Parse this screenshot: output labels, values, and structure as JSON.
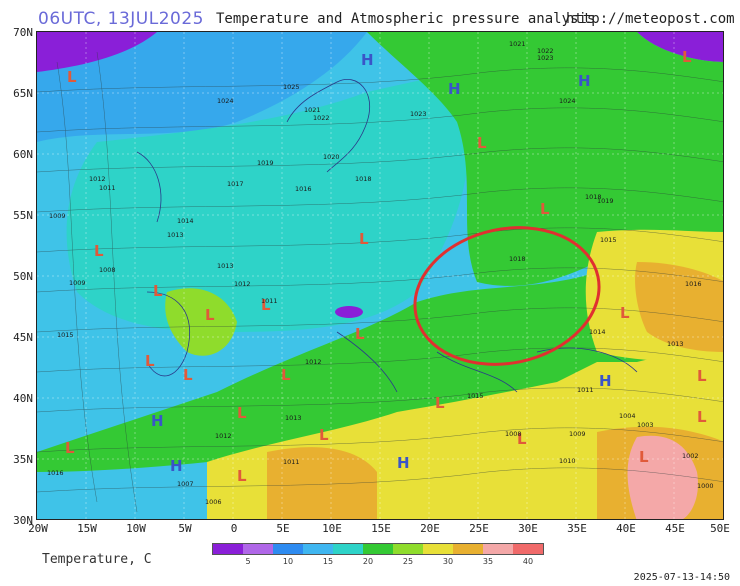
{
  "header": {
    "run_label": "06UTC, 13JUL2025",
    "title": "Temperature and Atmospheric pressure analysis",
    "url": "http://meteopost.com"
  },
  "axes": {
    "lat_labels": [
      "70N",
      "65N",
      "60N",
      "55N",
      "50N",
      "45N",
      "40N",
      "35N",
      "30N"
    ],
    "lon_labels": [
      "20W",
      "15W",
      "10W",
      "5W",
      "0",
      "5E",
      "10E",
      "15E",
      "20E",
      "25E",
      "30E",
      "35E",
      "40E",
      "45E",
      "50E"
    ]
  },
  "legend": {
    "title": "Temperature, C",
    "ticks": [
      "5",
      "10",
      "15",
      "20",
      "25",
      "30",
      "35",
      "40"
    ],
    "colors": [
      "#8a1fd8",
      "#b067e8",
      "#2e8bf0",
      "#3fb6f0",
      "#2ed3c8",
      "#34c934",
      "#8fdc2c",
      "#e8e038",
      "#e8b030",
      "#f4a8a8",
      "#f06a6a"
    ]
  },
  "pressure_centers": [
    {
      "type": "L"
    },
    {
      "type": "L"
    },
    {
      "type": "H"
    },
    {
      "type": "H"
    },
    {
      "type": "H"
    },
    {
      "type": "L"
    },
    {
      "type": "L"
    },
    {
      "type": "L"
    },
    {
      "type": "L"
    },
    {
      "type": "L"
    },
    {
      "type": "L"
    },
    {
      "type": "L"
    },
    {
      "type": "L"
    },
    {
      "type": "L"
    },
    {
      "type": "L"
    },
    {
      "type": "L"
    },
    {
      "type": "L"
    },
    {
      "type": "L"
    },
    {
      "type": "H"
    },
    {
      "type": "H"
    },
    {
      "type": "H"
    },
    {
      "type": "H"
    },
    {
      "type": "L"
    },
    {
      "type": "L"
    },
    {
      "type": "L"
    },
    {
      "type": "L"
    },
    {
      "type": "L"
    },
    {
      "type": "L"
    },
    {
      "type": "L"
    },
    {
      "type": "L"
    }
  ],
  "isobar_values": [
    "1021",
    "1022",
    "1023",
    "1024",
    "1025",
    "1021",
    "1022",
    "1023",
    "1024",
    "1019",
    "1017",
    "1020",
    "1016",
    "1018",
    "1011",
    "1012",
    "1009",
    "1014",
    "1013",
    "1011",
    "1008",
    "1009",
    "1013",
    "1012",
    "1015",
    "1018",
    "1015",
    "1016",
    "1013",
    "1014",
    "1012",
    "1011",
    "1015",
    "1013",
    "1012",
    "1011",
    "1008",
    "1009",
    "1010",
    "1004",
    "1003",
    "1002",
    "1000",
    "1006",
    "1007",
    "1016",
    "1019",
    "1018"
  ],
  "annotation": "red-ellipse-eastern-europe",
  "timestamp": "2025-07-13-14:50"
}
